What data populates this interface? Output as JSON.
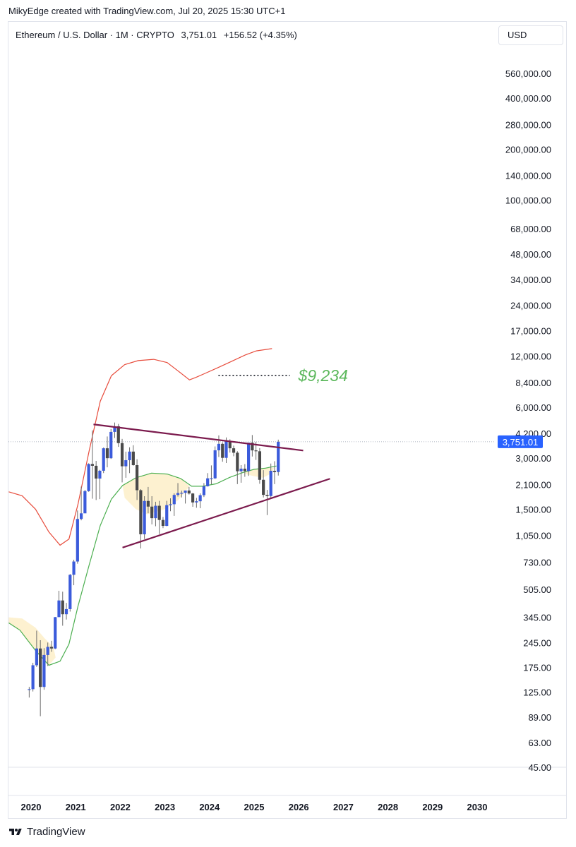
{
  "header": {
    "credit": "MikyEdge created with TradingView.com, Jul 20, 2025 15:30 UTC+1",
    "symbol": "Ethereum / U.S. Dollar · 1M · CRYPTO",
    "last": "3,751.01",
    "change": "+156.52 (+4.35%)",
    "currency_button": "USD"
  },
  "footer": {
    "brand": "TradingView",
    "logo_icon": "tradingview-logo-icon"
  },
  "annotation": {
    "target_label": "$9,234",
    "target_price": 9234,
    "target_color": "#5cb85c"
  },
  "price_badge": {
    "label": "3,751.01",
    "price": 3751.01,
    "color": "#2962ff"
  },
  "chart_data": {
    "type": "candlestick",
    "title": "Ethereum / U.S. Dollar · 1M · CRYPTO",
    "y_scale": "log",
    "y_ticks": [
      "560,000.00",
      "400,000.00",
      "280,000.00",
      "200,000.00",
      "140,000.00",
      "100,000.00",
      "68,000.00",
      "48,000.00",
      "34,000.00",
      "24,000.00",
      "17,000.00",
      "12,000.00",
      "8,400.00",
      "6,000.00",
      "4,200.00",
      "3,000.00",
      "2,100.00",
      "1,500.00",
      "1,050.00",
      "730.00",
      "505.00",
      "345.00",
      "245.00",
      "175.00",
      "125.00",
      "89.00",
      "63.00",
      "45.00"
    ],
    "y_tick_values": [
      560000,
      400000,
      280000,
      200000,
      140000,
      100000,
      68000,
      48000,
      34000,
      24000,
      17000,
      12000,
      8400,
      6000,
      4200,
      3000,
      2100,
      1500,
      1050,
      730,
      505,
      345,
      245,
      175,
      125,
      89,
      63,
      45
    ],
    "x_ticks": [
      "2020",
      "2021",
      "2022",
      "2023",
      "2024",
      "2025",
      "2026",
      "2027",
      "2028",
      "2029",
      "2030"
    ],
    "up_color": "#3b5bdb",
    "down_color": "#4a4a4a",
    "candles": [
      {
        "t": "2019-12",
        "o": 129,
        "h": 134,
        "l": 116,
        "c": 130
      },
      {
        "t": "2020-01",
        "o": 130,
        "h": 186,
        "l": 126,
        "c": 180
      },
      {
        "t": "2020-02",
        "o": 180,
        "h": 288,
        "l": 176,
        "c": 226
      },
      {
        "t": "2020-03",
        "o": 226,
        "h": 253,
        "l": 90,
        "c": 134
      },
      {
        "t": "2020-04",
        "o": 134,
        "h": 227,
        "l": 129,
        "c": 207
      },
      {
        "t": "2020-05",
        "o": 207,
        "h": 245,
        "l": 178,
        "c": 231
      },
      {
        "t": "2020-06",
        "o": 231,
        "h": 251,
        "l": 216,
        "c": 226
      },
      {
        "t": "2020-07",
        "o": 226,
        "h": 347,
        "l": 224,
        "c": 346
      },
      {
        "t": "2020-08",
        "o": 346,
        "h": 495,
        "l": 360,
        "c": 434
      },
      {
        "t": "2020-09",
        "o": 434,
        "h": 489,
        "l": 308,
        "c": 360
      },
      {
        "t": "2020-10",
        "o": 360,
        "h": 420,
        "l": 335,
        "c": 386
      },
      {
        "t": "2020-11",
        "o": 386,
        "h": 622,
        "l": 373,
        "c": 615
      },
      {
        "t": "2020-12",
        "o": 615,
        "h": 755,
        "l": 534,
        "c": 737
      },
      {
        "t": "2021-01",
        "o": 737,
        "h": 1475,
        "l": 715,
        "c": 1314
      },
      {
        "t": "2021-02",
        "o": 1314,
        "h": 2040,
        "l": 1290,
        "c": 1418
      },
      {
        "t": "2021-03",
        "o": 1418,
        "h": 1950,
        "l": 1440,
        "c": 1918
      },
      {
        "t": "2021-04",
        "o": 1918,
        "h": 2800,
        "l": 1900,
        "c": 2773
      },
      {
        "t": "2021-05",
        "o": 2773,
        "h": 4380,
        "l": 1730,
        "c": 2707
      },
      {
        "t": "2021-06",
        "o": 2707,
        "h": 2890,
        "l": 1700,
        "c": 2275
      },
      {
        "t": "2021-07",
        "o": 2275,
        "h": 2560,
        "l": 1720,
        "c": 2530
      },
      {
        "t": "2021-08",
        "o": 2530,
        "h": 3470,
        "l": 2450,
        "c": 3433
      },
      {
        "t": "2021-09",
        "o": 3433,
        "h": 4030,
        "l": 2650,
        "c": 3000
      },
      {
        "t": "2021-10",
        "o": 3000,
        "h": 4460,
        "l": 2970,
        "c": 4288
      },
      {
        "t": "2021-11",
        "o": 4288,
        "h": 4870,
        "l": 3950,
        "c": 4630
      },
      {
        "t": "2021-12",
        "o": 4630,
        "h": 4780,
        "l": 3500,
        "c": 3683
      },
      {
        "t": "2022-01",
        "o": 3683,
        "h": 3900,
        "l": 2160,
        "c": 2688
      },
      {
        "t": "2022-02",
        "o": 2688,
        "h": 3280,
        "l": 2300,
        "c": 2920
      },
      {
        "t": "2022-03",
        "o": 2920,
        "h": 3480,
        "l": 2450,
        "c": 3282
      },
      {
        "t": "2022-04",
        "o": 3282,
        "h": 3580,
        "l": 2710,
        "c": 2730
      },
      {
        "t": "2022-05",
        "o": 2730,
        "h": 2960,
        "l": 1700,
        "c": 1942
      },
      {
        "t": "2022-06",
        "o": 1942,
        "h": 1970,
        "l": 880,
        "c": 1067
      },
      {
        "t": "2022-07",
        "o": 1067,
        "h": 1790,
        "l": 1000,
        "c": 1678
      },
      {
        "t": "2022-08",
        "o": 1678,
        "h": 2030,
        "l": 1420,
        "c": 1554
      },
      {
        "t": "2022-09",
        "o": 1554,
        "h": 1790,
        "l": 1220,
        "c": 1328
      },
      {
        "t": "2022-10",
        "o": 1328,
        "h": 1660,
        "l": 1190,
        "c": 1572
      },
      {
        "t": "2022-11",
        "o": 1572,
        "h": 1680,
        "l": 1070,
        "c": 1296
      },
      {
        "t": "2022-12",
        "o": 1296,
        "h": 1350,
        "l": 1160,
        "c": 1196
      },
      {
        "t": "2023-01",
        "o": 1196,
        "h": 1680,
        "l": 1190,
        "c": 1585
      },
      {
        "t": "2023-02",
        "o": 1585,
        "h": 1740,
        "l": 1460,
        "c": 1605
      },
      {
        "t": "2023-03",
        "o": 1605,
        "h": 1860,
        "l": 1370,
        "c": 1821
      },
      {
        "t": "2023-04",
        "o": 1821,
        "h": 2140,
        "l": 1780,
        "c": 1869
      },
      {
        "t": "2023-05",
        "o": 1869,
        "h": 1930,
        "l": 1760,
        "c": 1874
      },
      {
        "t": "2023-06",
        "o": 1874,
        "h": 1930,
        "l": 1620,
        "c": 1934
      },
      {
        "t": "2023-07",
        "o": 1934,
        "h": 2030,
        "l": 1830,
        "c": 1857
      },
      {
        "t": "2023-08",
        "o": 1857,
        "h": 1870,
        "l": 1550,
        "c": 1645
      },
      {
        "t": "2023-09",
        "o": 1645,
        "h": 1750,
        "l": 1530,
        "c": 1671
      },
      {
        "t": "2023-10",
        "o": 1671,
        "h": 1860,
        "l": 1520,
        "c": 1815
      },
      {
        "t": "2023-11",
        "o": 1815,
        "h": 2140,
        "l": 1770,
        "c": 2049
      },
      {
        "t": "2023-12",
        "o": 2049,
        "h": 2450,
        "l": 2040,
        "c": 2282
      },
      {
        "t": "2024-01",
        "o": 2282,
        "h": 2720,
        "l": 2100,
        "c": 2283
      },
      {
        "t": "2024-02",
        "o": 2283,
        "h": 3520,
        "l": 2260,
        "c": 3340
      },
      {
        "t": "2024-03",
        "o": 3340,
        "h": 4090,
        "l": 3050,
        "c": 3646
      },
      {
        "t": "2024-04",
        "o": 3646,
        "h": 3720,
        "l": 2860,
        "c": 3014
      },
      {
        "t": "2024-05",
        "o": 3014,
        "h": 3980,
        "l": 2810,
        "c": 3763
      },
      {
        "t": "2024-06",
        "o": 3763,
        "h": 3880,
        "l": 3240,
        "c": 3433
      },
      {
        "t": "2024-07",
        "o": 3433,
        "h": 3560,
        "l": 3080,
        "c": 3232
      },
      {
        "t": "2024-08",
        "o": 3232,
        "h": 3300,
        "l": 2110,
        "c": 2513
      },
      {
        "t": "2024-09",
        "o": 2513,
        "h": 2730,
        "l": 2150,
        "c": 2603
      },
      {
        "t": "2024-10",
        "o": 2603,
        "h": 2770,
        "l": 2330,
        "c": 2518
      },
      {
        "t": "2024-11",
        "o": 2518,
        "h": 3680,
        "l": 2360,
        "c": 3705
      },
      {
        "t": "2024-12",
        "o": 3705,
        "h": 4110,
        "l": 3070,
        "c": 3336
      },
      {
        "t": "2025-01",
        "o": 3336,
        "h": 3750,
        "l": 2930,
        "c": 3297
      },
      {
        "t": "2025-02",
        "o": 3297,
        "h": 3440,
        "l": 2120,
        "c": 2237
      },
      {
        "t": "2025-03",
        "o": 2237,
        "h": 2550,
        "l": 1760,
        "c": 1823
      },
      {
        "t": "2025-04",
        "o": 1823,
        "h": 1950,
        "l": 1385,
        "c": 1794
      },
      {
        "t": "2025-05",
        "o": 1794,
        "h": 2790,
        "l": 1750,
        "c": 2528
      },
      {
        "t": "2025-06",
        "o": 2528,
        "h": 2880,
        "l": 2110,
        "c": 2486
      },
      {
        "t": "2025-07",
        "o": 2486,
        "h": 3860,
        "l": 2370,
        "c": 3751
      }
    ],
    "bands": {
      "upper_color": "#e74c3c",
      "basis_color": "#4caf50",
      "fill_color": "#fdf1d0",
      "upper": [
        [
          2019.5,
          1900
        ],
        [
          2019.8,
          1800
        ],
        [
          2020.1,
          1500
        ],
        [
          2020.4,
          1100
        ],
        [
          2020.65,
          920
        ],
        [
          2020.85,
          1000
        ],
        [
          2021.05,
          1600
        ],
        [
          2021.3,
          3300
        ],
        [
          2021.55,
          6500
        ],
        [
          2021.8,
          9200
        ],
        [
          2022.1,
          10700
        ],
        [
          2022.4,
          11300
        ],
        [
          2022.75,
          11500
        ],
        [
          2023.05,
          11000
        ],
        [
          2023.3,
          9800
        ],
        [
          2023.55,
          8700
        ],
        [
          2023.7,
          9000
        ],
        [
          2023.9,
          9500
        ],
        [
          2024.2,
          10300
        ],
        [
          2024.5,
          11200
        ],
        [
          2024.8,
          12200
        ],
        [
          2025.05,
          12900
        ],
        [
          2025.4,
          13300
        ]
      ],
      "basis": [
        [
          2019.5,
          320
        ],
        [
          2019.75,
          290
        ],
        [
          2020.1,
          220
        ],
        [
          2020.4,
          180
        ],
        [
          2020.65,
          190
        ],
        [
          2020.85,
          240
        ],
        [
          2021.05,
          400
        ],
        [
          2021.3,
          700
        ],
        [
          2021.55,
          1200
        ],
        [
          2021.8,
          1720
        ],
        [
          2022.05,
          2070
        ],
        [
          2022.35,
          2300
        ],
        [
          2022.7,
          2450
        ],
        [
          2023.05,
          2420
        ],
        [
          2023.35,
          2280
        ],
        [
          2023.6,
          2050
        ],
        [
          2023.85,
          2050
        ],
        [
          2024.15,
          2120
        ],
        [
          2024.45,
          2310
        ],
        [
          2024.75,
          2470
        ],
        [
          2025.0,
          2580
        ],
        [
          2025.25,
          2620
        ],
        [
          2025.5,
          2700
        ]
      ],
      "fill_segments": [
        [
          [
            2019.5,
            320
          ],
          [
            2019.75,
            290
          ],
          [
            2020.1,
            220
          ],
          [
            2020.4,
            180
          ],
          [
            2020.55,
            200
          ],
          [
            2020.5,
            230
          ],
          [
            2020.3,
            260
          ],
          [
            2020.1,
            300
          ],
          [
            2019.8,
            340
          ],
          [
            2019.5,
            345
          ]
        ],
        [
          [
            2022.05,
            2070
          ],
          [
            2022.35,
            2300
          ],
          [
            2022.7,
            2450
          ],
          [
            2023.05,
            2420
          ],
          [
            2023.35,
            2280
          ],
          [
            2023.55,
            2050
          ],
          [
            2023.3,
            1700
          ],
          [
            2023.0,
            1500
          ],
          [
            2022.6,
            1400
          ],
          [
            2022.35,
            1500
          ],
          [
            2022.1,
            1750
          ]
        ],
        [
          [
            2024.75,
            2470
          ],
          [
            2025.0,
            2580
          ],
          [
            2025.25,
            2620
          ],
          [
            2025.45,
            2640
          ],
          [
            2025.4,
            2450
          ],
          [
            2025.2,
            2300
          ],
          [
            2025.0,
            2350
          ],
          [
            2024.85,
            2400
          ]
        ]
      ]
    },
    "trendlines": [
      {
        "name": "resistance",
        "color": "#7b1a4d",
        "from": [
          2021.4,
          4750
        ],
        "to": [
          2026.1,
          3330
        ]
      },
      {
        "name": "support",
        "color": "#7b1a4d",
        "from": [
          2022.05,
          890
        ],
        "to": [
          2026.7,
          2270
        ]
      }
    ],
    "target_line": {
      "from": [
        2024.2,
        9234
      ],
      "to": [
        2025.8,
        9234
      ],
      "color": "#131722",
      "dotted": true
    },
    "last_price_line": 3751.01,
    "x_range": [
      2019.8,
      2030.6
    ],
    "y_range": [
      45,
      700000
    ]
  }
}
